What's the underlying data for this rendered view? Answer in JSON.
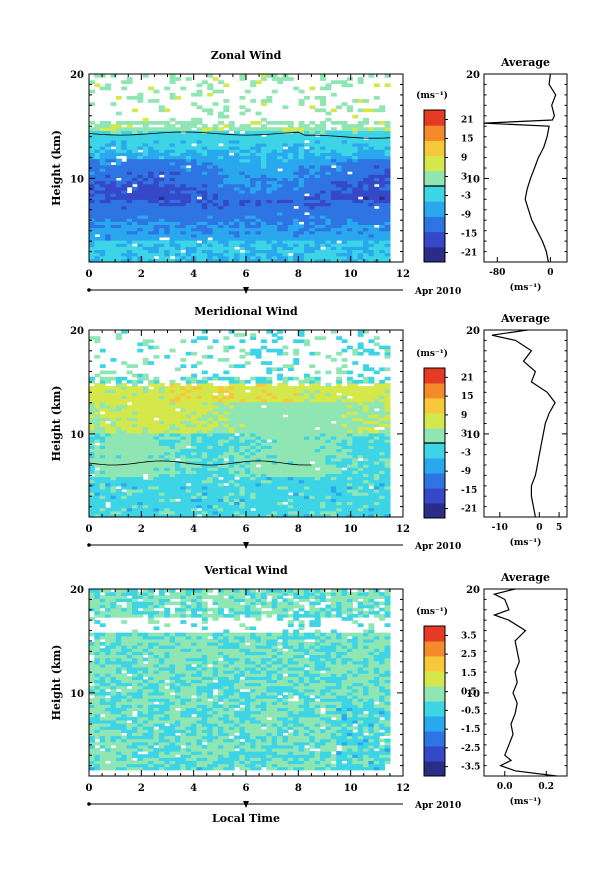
{
  "chart_data": [
    {
      "type": "heatmap",
      "title": "Zonal Wind",
      "ylabel": "Height (km)",
      "xlabel": "",
      "date_label": "Apr 2010",
      "date_marker": "7",
      "xlim": [
        0,
        12
      ],
      "ylim": [
        2,
        20
      ],
      "xticks": [
        "0",
        "2",
        "4",
        "6",
        "8",
        "10",
        "12"
      ],
      "yticks": [
        "10",
        "20"
      ],
      "colorbar_unit": "(ms⁻¹)",
      "colorbar_ticks": [
        "21",
        "15",
        "9",
        "3",
        "-3",
        "-9",
        "-15",
        "-21"
      ],
      "colorbar_range": [
        -24,
        24
      ],
      "zero_contour_level": 0,
      "average_panel": {
        "title": "Average",
        "xlabel": "(ms⁻¹)",
        "xticks": [
          "-80",
          "0"
        ],
        "xlim": [
          -100,
          25
        ],
        "profile": [
          [
            2,
            -3
          ],
          [
            3,
            -6
          ],
          [
            4,
            -12
          ],
          [
            5,
            -20
          ],
          [
            6,
            -28
          ],
          [
            7,
            -33
          ],
          [
            8,
            -38
          ],
          [
            9,
            -35
          ],
          [
            10,
            -30
          ],
          [
            11,
            -24
          ],
          [
            12,
            -18
          ],
          [
            13,
            -10
          ],
          [
            14,
            -5
          ],
          [
            15,
            -2
          ],
          [
            15.3,
            -100
          ],
          [
            15.6,
            3
          ],
          [
            16,
            6
          ],
          [
            17,
            2
          ],
          [
            18,
            8
          ],
          [
            19,
            -2
          ],
          [
            20,
            0
          ]
        ]
      }
    },
    {
      "type": "heatmap",
      "title": "Meridional Wind",
      "ylabel": "Height (km)",
      "xlabel": "",
      "date_label": "Apr 2010",
      "date_marker": "7",
      "xlim": [
        0,
        12
      ],
      "ylim": [
        2,
        20
      ],
      "xticks": [
        "0",
        "2",
        "4",
        "6",
        "8",
        "10",
        "12"
      ],
      "yticks": [
        "10",
        "20"
      ],
      "colorbar_unit": "(ms⁻¹)",
      "colorbar_ticks": [
        "21",
        "15",
        "9",
        "3",
        "-3",
        "-9",
        "-15",
        "-21"
      ],
      "colorbar_range": [
        -24,
        24
      ],
      "zero_contour_level": 0,
      "average_panel": {
        "title": "Average",
        "xlabel": "(ms⁻¹)",
        "xticks": [
          "-10",
          "0",
          "5"
        ],
        "xlim": [
          -14,
          7
        ],
        "profile": [
          [
            2,
            -1
          ],
          [
            3,
            -1.5
          ],
          [
            4,
            -2
          ],
          [
            5,
            -2
          ],
          [
            6,
            -1
          ],
          [
            7,
            -0.5
          ],
          [
            8,
            0
          ],
          [
            9,
            0.5
          ],
          [
            10,
            1
          ],
          [
            11,
            1.5
          ],
          [
            12,
            2.5
          ],
          [
            13,
            4
          ],
          [
            14,
            2
          ],
          [
            15,
            -2
          ],
          [
            16,
            -1
          ],
          [
            17,
            -4
          ],
          [
            18,
            -2
          ],
          [
            19,
            -6
          ],
          [
            19.5,
            -12
          ],
          [
            20,
            -3
          ]
        ]
      }
    },
    {
      "type": "heatmap",
      "title": "Vertical Wind",
      "ylabel": "Height (km)",
      "xlabel": "Local Time",
      "date_label": "Apr 2010",
      "date_marker": "7",
      "xlim": [
        0,
        12
      ],
      "ylim": [
        2,
        20
      ],
      "xticks": [
        "0",
        "2",
        "4",
        "6",
        "8",
        "10",
        "12"
      ],
      "yticks": [
        "10",
        "20"
      ],
      "colorbar_unit": "(ms⁻¹)",
      "colorbar_ticks": [
        "3.5",
        "2.5",
        "1.5",
        "0.5",
        "-0.5",
        "-1.5",
        "-2.5",
        "-3.5"
      ],
      "colorbar_range": [
        -4,
        4
      ],
      "zero_contour_level": null,
      "average_panel": {
        "title": "Average",
        "xlabel": "(ms⁻¹)",
        "xticks": [
          "0.0",
          "0.2"
        ],
        "xlim": [
          -0.1,
          0.3
        ],
        "profile": [
          [
            2,
            0.25
          ],
          [
            2.5,
            0.05
          ],
          [
            3,
            -0.02
          ],
          [
            3.5,
            0.03
          ],
          [
            4,
            0.0
          ],
          [
            5,
            0.02
          ],
          [
            6,
            0.04
          ],
          [
            7,
            0.03
          ],
          [
            8,
            0.05
          ],
          [
            9,
            0.06
          ],
          [
            10,
            0.04
          ],
          [
            11,
            0.06
          ],
          [
            12,
            0.05
          ],
          [
            13,
            0.07
          ],
          [
            14,
            0.06
          ],
          [
            15,
            0.05
          ],
          [
            16,
            0.1
          ],
          [
            17,
            0.02
          ],
          [
            17.5,
            -0.05
          ],
          [
            18,
            0.02
          ],
          [
            19,
            0.0
          ],
          [
            19.5,
            -0.05
          ],
          [
            20,
            0.05
          ]
        ]
      }
    }
  ]
}
